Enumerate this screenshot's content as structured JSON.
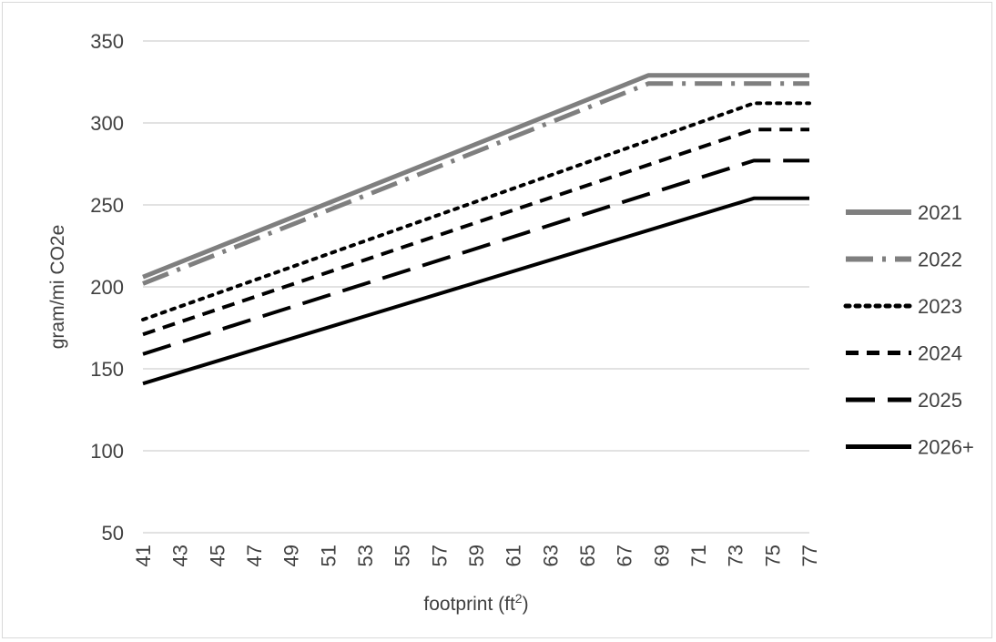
{
  "chart_data": {
    "type": "line",
    "title": "",
    "xlabel": "footprint (ft",
    "xlabel_sup": "2",
    "xlabel_tail": ")",
    "ylabel": "gram/mi CO2e",
    "x": [
      41,
      43,
      45,
      47,
      49,
      51,
      53,
      55,
      57,
      59,
      61,
      63,
      65,
      67,
      69,
      71,
      73,
      75,
      77
    ],
    "x_tick_labels": [
      "41",
      "43",
      "45",
      "47",
      "49",
      "51",
      "53",
      "55",
      "57",
      "59",
      "61",
      "63",
      "65",
      "67",
      "69",
      "71",
      "73",
      "75",
      "77"
    ],
    "ylim": [
      50,
      350
    ],
    "y_ticks": [
      50,
      100,
      150,
      200,
      250,
      300,
      350
    ],
    "grid": "horizontal",
    "legend_position": "right",
    "series": [
      {
        "name": "2021",
        "color": "#7f7f7f",
        "dash": "solid",
        "width": 5,
        "points": [
          [
            41,
            206
          ],
          [
            68.3,
            329
          ],
          [
            77,
            329
          ]
        ]
      },
      {
        "name": "2022",
        "color": "#7f7f7f",
        "dash": "dashdot",
        "width": 5,
        "points": [
          [
            41,
            202
          ],
          [
            68.3,
            324
          ],
          [
            77,
            324
          ]
        ]
      },
      {
        "name": "2023",
        "color": "#000000",
        "dash": "dot",
        "width": 4,
        "points": [
          [
            41,
            180
          ],
          [
            74,
            312
          ],
          [
            77,
            312
          ]
        ]
      },
      {
        "name": "2024",
        "color": "#000000",
        "dash": "dash",
        "width": 4,
        "points": [
          [
            41,
            171
          ],
          [
            74,
            296
          ],
          [
            77,
            296
          ]
        ]
      },
      {
        "name": "2025",
        "color": "#000000",
        "dash": "longdash",
        "width": 4,
        "points": [
          [
            41,
            159
          ],
          [
            74,
            277
          ],
          [
            77,
            277
          ]
        ]
      },
      {
        "name": "2026+",
        "color": "#000000",
        "dash": "solid",
        "width": 4,
        "points": [
          [
            41,
            141
          ],
          [
            74,
            254
          ],
          [
            77,
            254
          ]
        ]
      }
    ]
  }
}
